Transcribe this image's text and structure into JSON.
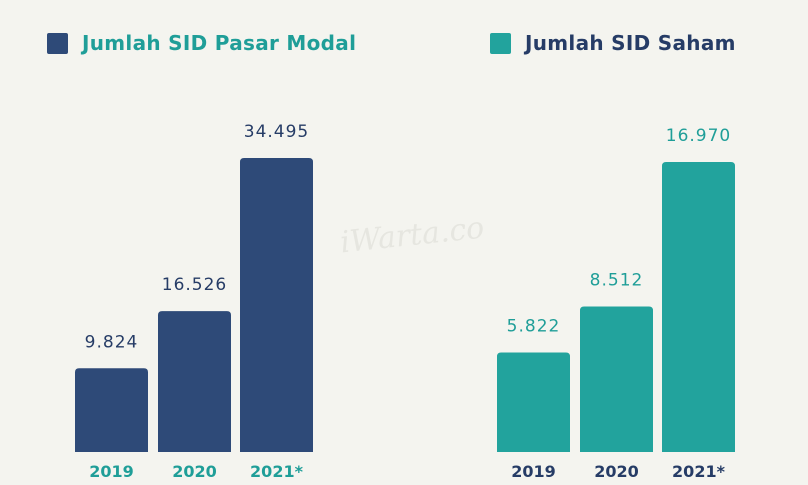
{
  "colors": {
    "background": "#f4f4ef",
    "navy": "#2e4a78",
    "teal": "#22a39d",
    "navy_text": "#263c66",
    "teal_text": "#1f9e98"
  },
  "watermark": "iWarta.co",
  "chart_data": [
    {
      "type": "bar",
      "title": "Jumlah SID Pasar Modal",
      "categories": [
        "2019",
        "2020",
        "2021*"
      ],
      "values": [
        9824,
        16526,
        34495
      ],
      "value_labels": [
        "9.824",
        "16.526",
        "34.495"
      ],
      "bar_color": "#2e4a78",
      "legend_text_color": "#1f9e98",
      "value_label_color": "#263c66",
      "category_label_color": "#1f9e98",
      "ylim": [
        0,
        34495
      ],
      "grid": false,
      "legend": "top-left"
    },
    {
      "type": "bar",
      "title": "Jumlah SID Saham",
      "categories": [
        "2019",
        "2020",
        "2021*"
      ],
      "values": [
        5822,
        8512,
        16970
      ],
      "value_labels": [
        "5.822",
        "8.512",
        "16.970"
      ],
      "bar_color": "#22a39d",
      "legend_text_color": "#263c66",
      "value_label_color": "#1f9e98",
      "category_label_color": "#263c66",
      "ylim": [
        0,
        16970
      ],
      "grid": false,
      "legend": "top-right"
    }
  ]
}
